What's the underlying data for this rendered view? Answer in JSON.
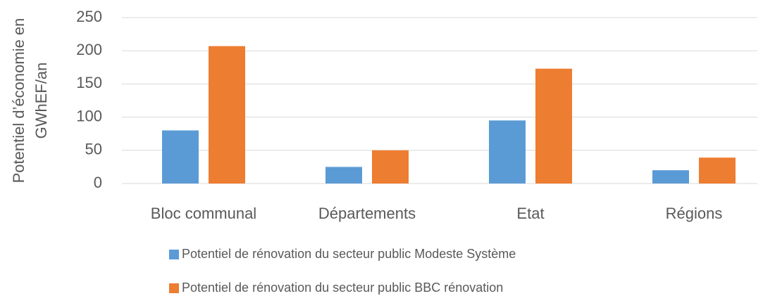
{
  "chart_data": {
    "type": "bar",
    "y_label": [
      "Potentiel d’économie en",
      "GWhEF/an"
    ],
    "categories": [
      "Bloc communal",
      "Départements",
      "Etat",
      "Régions"
    ],
    "series": [
      {
        "name": "Potentiel de rénovation du secteur public Modeste Système",
        "color": "#5b9bd5",
        "values": [
          80,
          25,
          95,
          20
        ]
      },
      {
        "name": "Potentiel de rénovation du secteur public BBC rénovation",
        "color": "#ed7d31",
        "values": [
          207,
          50,
          173,
          39
        ]
      }
    ],
    "ylim": [
      0,
      250
    ],
    "yticks": [
      0,
      50,
      100,
      150,
      200,
      250
    ],
    "grid": true,
    "legend": "bottom"
  }
}
